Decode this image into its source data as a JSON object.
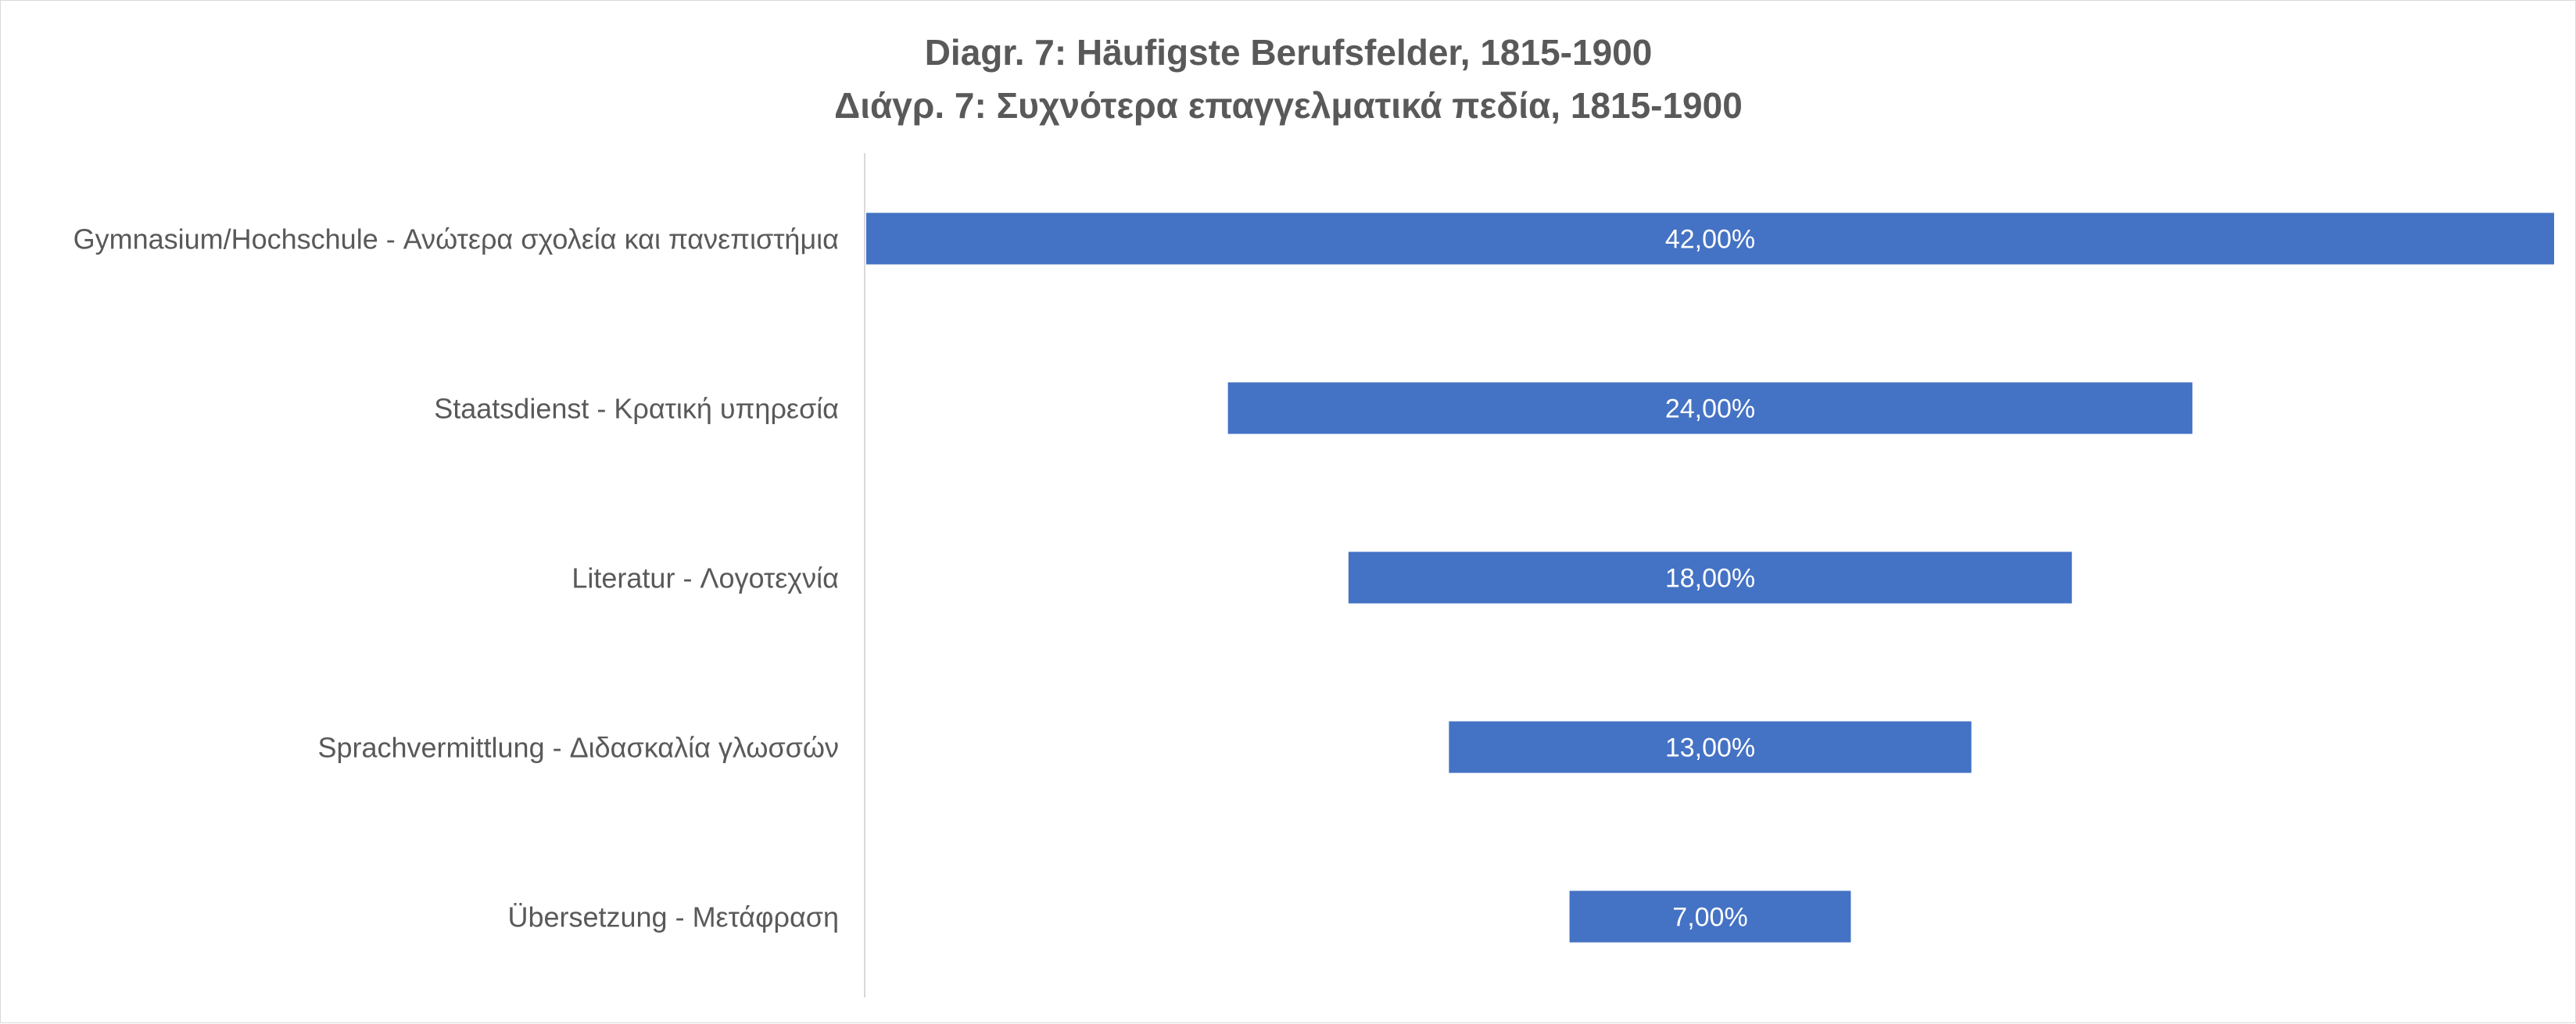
{
  "chart_data": {
    "type": "bar",
    "orientation": "horizontal",
    "variant": "funnel",
    "title": "Diagr. 7: Häufigste Berufsfelder, 1815-1900",
    "subtitle": "Διάγρ. 7: Συχνότερα επαγγελματικά πεδία, 1815-1900",
    "categories": [
      "Gymnasium/Hochschule - Ανώτερα σχολεία και πανεπιστήμια",
      "Staatsdienst - Κρατική υπηρεσία",
      "Literatur - Λογοτεχνία",
      "Sprachvermittlung - Διδασκαλία γλωσσών",
      "Übersetzung - Μετάφραση"
    ],
    "values": [
      42,
      24,
      18,
      13,
      7
    ],
    "data_labels": [
      "42,00%",
      "24,00%",
      "18,00%",
      "13,00%",
      "7,00%"
    ],
    "xlabel": "",
    "ylabel": "",
    "unit": "%",
    "xlim": [
      0,
      42
    ],
    "grid": false,
    "legend": "none",
    "colors": {
      "bar": "#4472c4",
      "text": "#595959",
      "axis": "#d9d9d9",
      "data_label": "#ffffff"
    }
  }
}
